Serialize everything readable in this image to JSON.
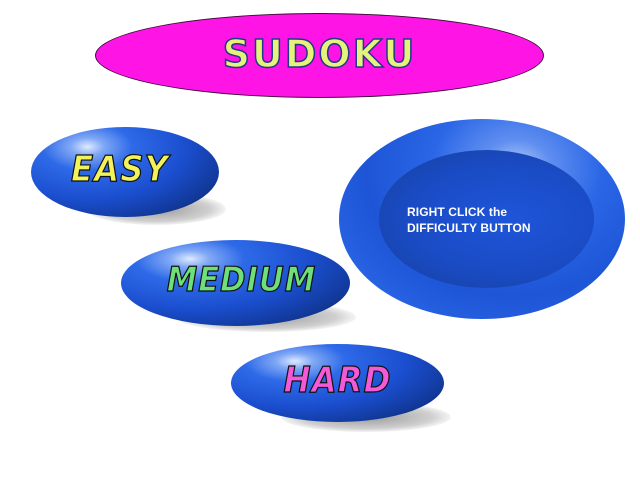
{
  "title": {
    "text": "SUDOKU",
    "oval_color": "#ff14e6",
    "text_color": "#e6f27a"
  },
  "difficulty_buttons": [
    {
      "id": "easy",
      "label": "EASY",
      "text_color": "#f2f25a"
    },
    {
      "id": "medium",
      "label": "MEDIUM",
      "text_color": "#6ee07a"
    },
    {
      "id": "hard",
      "label": "HARD",
      "text_color": "#f45ad8"
    }
  ],
  "info": {
    "line1": "RIGHT CLICK the",
    "line2": "DIFFICULTY BUTTON"
  },
  "colors": {
    "button_blue": "#1b4fd0",
    "background": "#ffffff"
  }
}
